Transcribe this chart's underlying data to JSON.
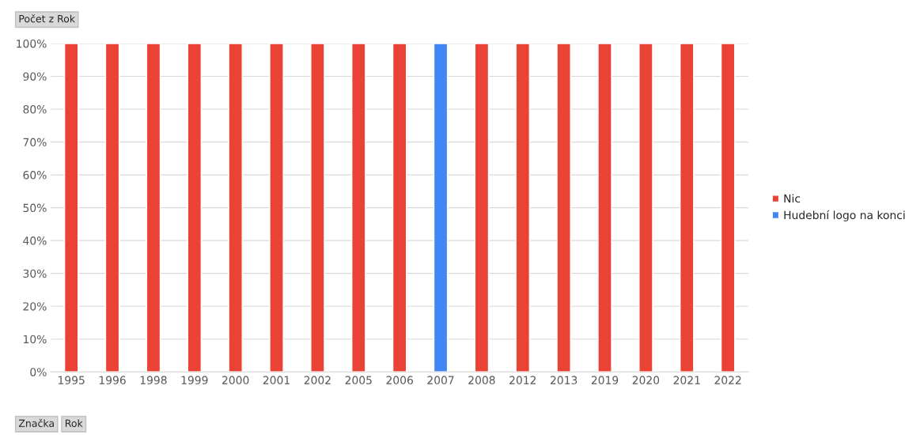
{
  "chart_data": {
    "type": "bar",
    "stacked": true,
    "title": "Počet z Rok",
    "categories": [
      "1995",
      "1996",
      "1998",
      "1999",
      "2000",
      "2001",
      "2002",
      "2005",
      "2006",
      "2007",
      "2008",
      "2012",
      "2013",
      "2019",
      "2020",
      "2021",
      "2022"
    ],
    "series": [
      {
        "name": "Nic",
        "color": "#ea4335",
        "values": [
          100,
          100,
          100,
          100,
          100,
          100,
          100,
          100,
          100,
          null,
          100,
          100,
          100,
          100,
          100,
          100,
          100
        ]
      },
      {
        "name": "Hudební logo na konci",
        "color": "#4285f4",
        "values": [
          null,
          null,
          null,
          null,
          null,
          null,
          null,
          null,
          null,
          100,
          null,
          null,
          null,
          null,
          null,
          null,
          null
        ]
      }
    ],
    "ylim": [
      0,
      100
    ],
    "yticks": [
      {
        "value": 0,
        "label": "0%"
      },
      {
        "value": 10,
        "label": "10%"
      },
      {
        "value": 20,
        "label": "20%"
      },
      {
        "value": 30,
        "label": "30%"
      },
      {
        "value": 40,
        "label": "40%"
      },
      {
        "value": 50,
        "label": "50%"
      },
      {
        "value": 60,
        "label": "60%"
      },
      {
        "value": 70,
        "label": "70%"
      },
      {
        "value": 80,
        "label": "80%"
      },
      {
        "value": 90,
        "label": "90%"
      },
      {
        "value": 100,
        "label": "100%"
      }
    ],
    "grid": "y",
    "legend": "right",
    "annotations": [
      "Značka",
      "Rok"
    ]
  }
}
